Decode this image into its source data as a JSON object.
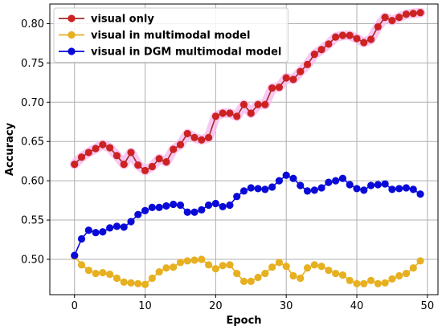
{
  "chart_data": {
    "type": "line",
    "xlabel": "Epoch",
    "ylabel": "Accuracy",
    "xlim": [
      -3.5,
      51.5
    ],
    "ylim": [
      0.455,
      0.825
    ],
    "xticks": [
      0,
      10,
      20,
      30,
      40,
      50
    ],
    "yticks": [
      0.5,
      0.55,
      0.6,
      0.65,
      0.7,
      0.75,
      0.8
    ],
    "grid": true,
    "legend_position": "top-left",
    "x": [
      0,
      1,
      2,
      3,
      4,
      5,
      6,
      7,
      8,
      9,
      10,
      11,
      12,
      13,
      14,
      15,
      16,
      17,
      18,
      19,
      20,
      21,
      22,
      23,
      24,
      25,
      26,
      27,
      28,
      29,
      30,
      31,
      32,
      33,
      34,
      35,
      36,
      37,
      38,
      39,
      40,
      41,
      42,
      43,
      44,
      45,
      46,
      47,
      48,
      49
    ],
    "series": [
      {
        "name": "visual only",
        "line_color": "#a52a2a",
        "marker_color": "#cc2222",
        "halo_color": "#f7b6ee",
        "halo": true,
        "values": [
          0.621,
          0.63,
          0.636,
          0.641,
          0.646,
          0.642,
          0.632,
          0.621,
          0.636,
          0.62,
          0.613,
          0.618,
          0.628,
          0.624,
          0.64,
          0.646,
          0.66,
          0.655,
          0.652,
          0.655,
          0.682,
          0.686,
          0.686,
          0.682,
          0.697,
          0.686,
          0.697,
          0.697,
          0.718,
          0.719,
          0.731,
          0.729,
          0.739,
          0.748,
          0.761,
          0.767,
          0.774,
          0.783,
          0.785,
          0.785,
          0.781,
          0.776,
          0.78,
          0.796,
          0.808,
          0.804,
          0.808,
          0.812,
          0.813,
          0.814
        ]
      },
      {
        "name": "visual in multimodal model",
        "line_color": "#e6b020",
        "marker_color": "#e6b020",
        "halo": false,
        "values": [
          0.504,
          0.493,
          0.486,
          0.482,
          0.483,
          0.481,
          0.476,
          0.471,
          0.47,
          0.469,
          0.468,
          0.476,
          0.484,
          0.489,
          0.49,
          0.496,
          0.498,
          0.499,
          0.5,
          0.493,
          0.488,
          0.492,
          0.493,
          0.482,
          0.472,
          0.472,
          0.477,
          0.482,
          0.49,
          0.496,
          0.491,
          0.479,
          0.476,
          0.489,
          0.493,
          0.491,
          0.486,
          0.482,
          0.48,
          0.473,
          0.469,
          0.469,
          0.473,
          0.469,
          0.47,
          0.475,
          0.479,
          0.482,
          0.489,
          0.498
        ]
      },
      {
        "name": "visual in DGM multimodal model",
        "line_color": "#0a0ad8",
        "marker_color": "#0a0ad8",
        "halo": false,
        "values": [
          0.505,
          0.526,
          0.537,
          0.534,
          0.535,
          0.54,
          0.542,
          0.541,
          0.548,
          0.557,
          0.562,
          0.566,
          0.566,
          0.568,
          0.57,
          0.569,
          0.56,
          0.56,
          0.563,
          0.569,
          0.571,
          0.567,
          0.569,
          0.58,
          0.587,
          0.591,
          0.59,
          0.589,
          0.592,
          0.6,
          0.607,
          0.603,
          0.594,
          0.587,
          0.588,
          0.591,
          0.598,
          0.6,
          0.603,
          0.595,
          0.59,
          0.588,
          0.594,
          0.595,
          0.596,
          0.589,
          0.59,
          0.591,
          0.589,
          0.583
        ]
      }
    ]
  }
}
